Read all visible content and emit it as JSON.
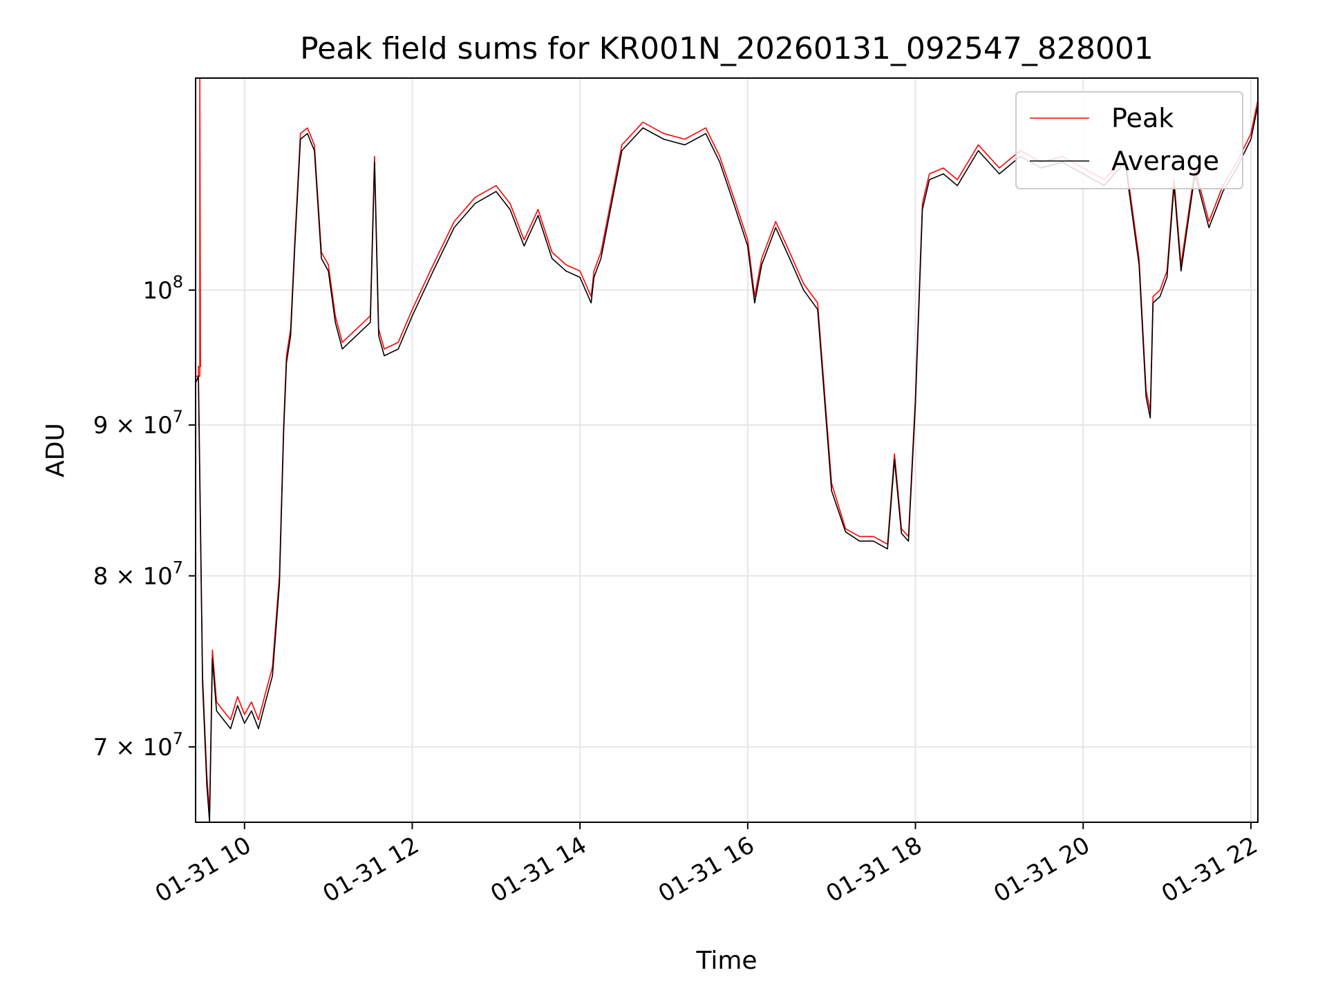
{
  "chart_data": {
    "type": "line",
    "title": "Peak field sums for KR001N_20260131_092547_828001",
    "xlabel": "Time",
    "ylabel": "ADU",
    "yscale": "log",
    "xlim": [
      "2026-01-31 09:25",
      "2026-01-31 22:05"
    ],
    "ylim": [
      66000000,
      118000000
    ],
    "grid": true,
    "legend_position": "top-right",
    "x_ticks": [
      "01-31 10",
      "01-31 12",
      "01-31 14",
      "01-31 16",
      "01-31 18",
      "01-31 20",
      "01-31 22"
    ],
    "y_ticks": [
      {
        "value": 70000000,
        "label_base": "7 × 10",
        "label_exp": "7"
      },
      {
        "value": 80000000,
        "label_base": "8 × 10",
        "label_exp": "7"
      },
      {
        "value": 90000000,
        "label_base": "9 × 10",
        "label_exp": "7"
      },
      {
        "value": 100000000,
        "label_base": "10",
        "label_exp": "8"
      }
    ],
    "x_time": [
      "09:25",
      "09:27",
      "09:30",
      "09:33",
      "09:35",
      "09:37",
      "09:40",
      "09:45",
      "09:50",
      "09:55",
      "10:00",
      "10:05",
      "10:10",
      "10:15",
      "10:20",
      "10:25",
      "10:28",
      "10:30",
      "10:33",
      "10:36",
      "10:40",
      "10:45",
      "10:50",
      "10:55",
      "11:00",
      "11:05",
      "11:10",
      "11:20",
      "11:30",
      "11:33",
      "11:36",
      "11:40",
      "11:50",
      "12:00",
      "12:15",
      "12:30",
      "12:45",
      "13:00",
      "13:10",
      "13:20",
      "13:30",
      "13:40",
      "13:50",
      "14:00",
      "14:08",
      "14:10",
      "14:15",
      "14:30",
      "14:45",
      "15:00",
      "15:15",
      "15:30",
      "15:40",
      "15:50",
      "16:00",
      "16:05",
      "16:10",
      "16:20",
      "16:30",
      "16:40",
      "16:50",
      "17:00",
      "17:10",
      "17:20",
      "17:30",
      "17:40",
      "17:45",
      "17:50",
      "17:55",
      "18:00",
      "18:05",
      "18:10",
      "18:20",
      "18:30",
      "18:45",
      "19:00",
      "19:15",
      "19:30",
      "19:45",
      "20:00",
      "20:15",
      "20:30",
      "20:40",
      "20:45",
      "20:48",
      "20:50",
      "20:55",
      "21:00",
      "21:05",
      "21:10",
      "21:20",
      "21:30",
      "21:40",
      "21:50",
      "22:00",
      "22:05"
    ],
    "series": [
      {
        "name": "Peak",
        "color": "#ff0000",
        "spike": {
          "x": "09:28",
          "y": 118000000
        },
        "values": [
          93500000,
          94200000,
          74000000,
          68500000,
          66500000,
          75500000,
          72500000,
          72000000,
          71500000,
          72800000,
          71800000,
          72500000,
          71500000,
          73000000,
          74500000,
          80000000,
          90000000,
          95000000,
          97000000,
          104000000,
          113000000,
          113500000,
          112000000,
          103000000,
          102000000,
          98000000,
          96000000,
          97000000,
          98000000,
          111000000,
          97000000,
          95500000,
          96000000,
          98500000,
          102000000,
          105500000,
          107500000,
          108500000,
          107000000,
          104000000,
          106500000,
          103000000,
          102000000,
          101500000,
          99500000,
          101500000,
          103000000,
          112000000,
          114000000,
          113000000,
          112500000,
          113500000,
          111000000,
          107500000,
          104000000,
          99500000,
          102500000,
          105500000,
          103000000,
          100500000,
          99000000,
          86000000,
          83000000,
          82500000,
          82500000,
          82000000,
          88000000,
          83000000,
          82500000,
          92000000,
          107000000,
          109500000,
          110000000,
          109000000,
          112000000,
          110000000,
          111500000,
          110500000,
          111000000,
          110000000,
          109000000,
          111000000,
          102500000,
          92500000,
          91000000,
          99500000,
          100000000,
          101500000,
          109000000,
          102000000,
          110000000,
          105500000,
          108500000,
          110500000,
          113000000,
          116000000
        ]
      },
      {
        "name": "Average",
        "color": "#000000",
        "values": [
          93000000,
          93500000,
          73500000,
          68000000,
          66000000,
          75000000,
          72000000,
          71500000,
          71000000,
          72300000,
          71300000,
          72000000,
          71000000,
          72500000,
          74000000,
          79500000,
          89500000,
          94500000,
          96500000,
          103500000,
          112500000,
          113000000,
          111500000,
          102500000,
          101500000,
          97500000,
          95500000,
          96500000,
          97500000,
          110500000,
          96500000,
          95000000,
          95500000,
          98000000,
          101500000,
          105000000,
          107000000,
          108000000,
          106500000,
          103500000,
          106000000,
          102500000,
          101500000,
          101000000,
          99000000,
          101000000,
          102500000,
          111500000,
          113500000,
          112500000,
          112000000,
          113000000,
          110500000,
          107000000,
          103500000,
          99000000,
          102000000,
          105000000,
          102500000,
          100000000,
          98500000,
          85500000,
          82800000,
          82200000,
          82200000,
          81700000,
          87600000,
          82700000,
          82200000,
          91500000,
          106500000,
          109000000,
          109500000,
          108500000,
          111500000,
          109500000,
          111000000,
          110000000,
          110500000,
          109500000,
          108500000,
          110500000,
          102000000,
          92000000,
          90500000,
          99000000,
          99500000,
          101000000,
          108500000,
          101500000,
          109500000,
          105000000,
          108000000,
          110000000,
          112500000,
          115500000
        ]
      }
    ]
  }
}
